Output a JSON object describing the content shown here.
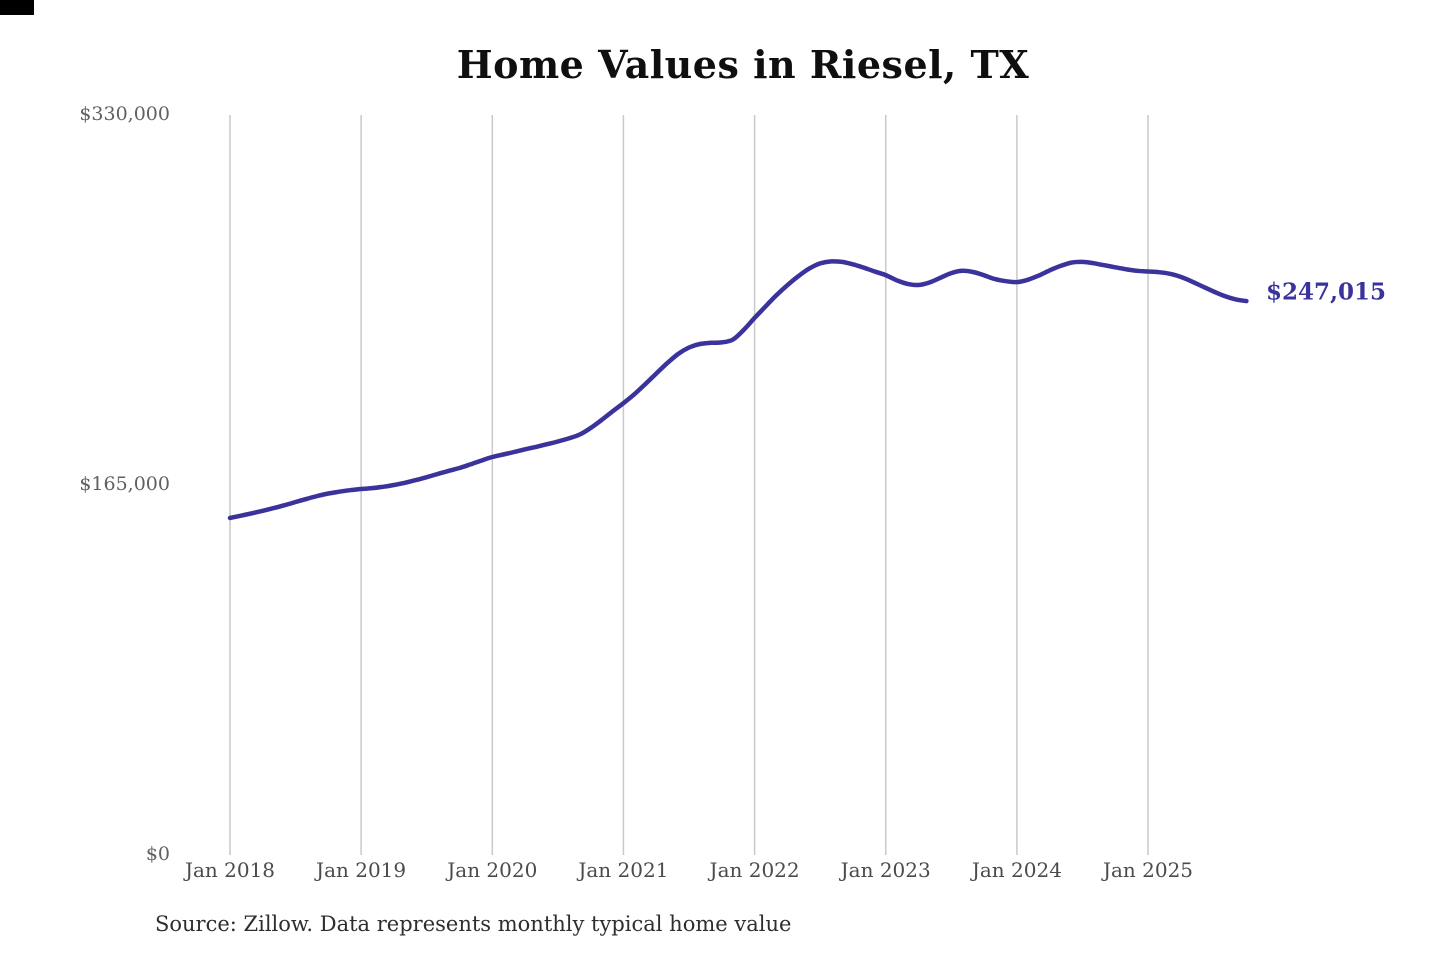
{
  "chart": {
    "title": "Home Values in Riesel, TX",
    "source": "Source: Zillow. Data represents monthly typical home value",
    "colors": {
      "line": "#3b339c",
      "gridline": "#c9c9c9",
      "end_label": "#3b339c",
      "title": "#0f0f0f",
      "y_tick_text": "#606062",
      "x_tick_text": "#4b4b4d"
    }
  },
  "chart_data": {
    "type": "line",
    "title": "Home Values in Riesel, TX",
    "unit": "USD",
    "x_start": "Jan 2018",
    "x_end": "Oct 2025",
    "months_per_tick": 12,
    "x_tick_labels": [
      "Jan 2018",
      "Jan 2019",
      "Jan 2020",
      "Jan 2021",
      "Jan 2022",
      "Jan 2023",
      "Jan 2024",
      "Jan 2025"
    ],
    "y_ticks": [
      {
        "label": "$330,000",
        "value": 330000
      },
      {
        "label": "$165,000",
        "value": 165000
      },
      {
        "label": "$0",
        "value": 0
      }
    ],
    "ylim": [
      0,
      330000
    ],
    "grid": "vertical-only",
    "legend": "none",
    "series": [
      {
        "name": "Monthly typical home value",
        "final_value": 247015,
        "final_label": "$247,015",
        "monthly_values": [
          150300,
          151300,
          152400,
          153500,
          154700,
          156000,
          157400,
          158800,
          160100,
          161200,
          162000,
          162700,
          163200,
          163600,
          164200,
          165000,
          166000,
          167200,
          168500,
          169900,
          171300,
          172600,
          174200,
          175900,
          177500,
          178600,
          179700,
          180900,
          182000,
          183200,
          184400,
          185800,
          187500,
          190400,
          194000,
          197800,
          201500,
          205500,
          210000,
          214700,
          219300,
          223400,
          226300,
          227900,
          228400,
          228600,
          229800,
          234100,
          239500,
          244600,
          249600,
          254100,
          258100,
          261500,
          263800,
          264700,
          264500,
          263400,
          261900,
          260200,
          258600,
          256300,
          254700,
          254200,
          255300,
          257400,
          259500,
          260500,
          260000,
          258500,
          256800,
          255900,
          255500,
          256500,
          258400,
          260700,
          262700,
          264200,
          264500,
          263900,
          263000,
          262100,
          261200,
          260500,
          260200,
          259900,
          259200,
          257800,
          255800,
          253500,
          251300,
          249300,
          247800,
          247015
        ]
      }
    ]
  }
}
